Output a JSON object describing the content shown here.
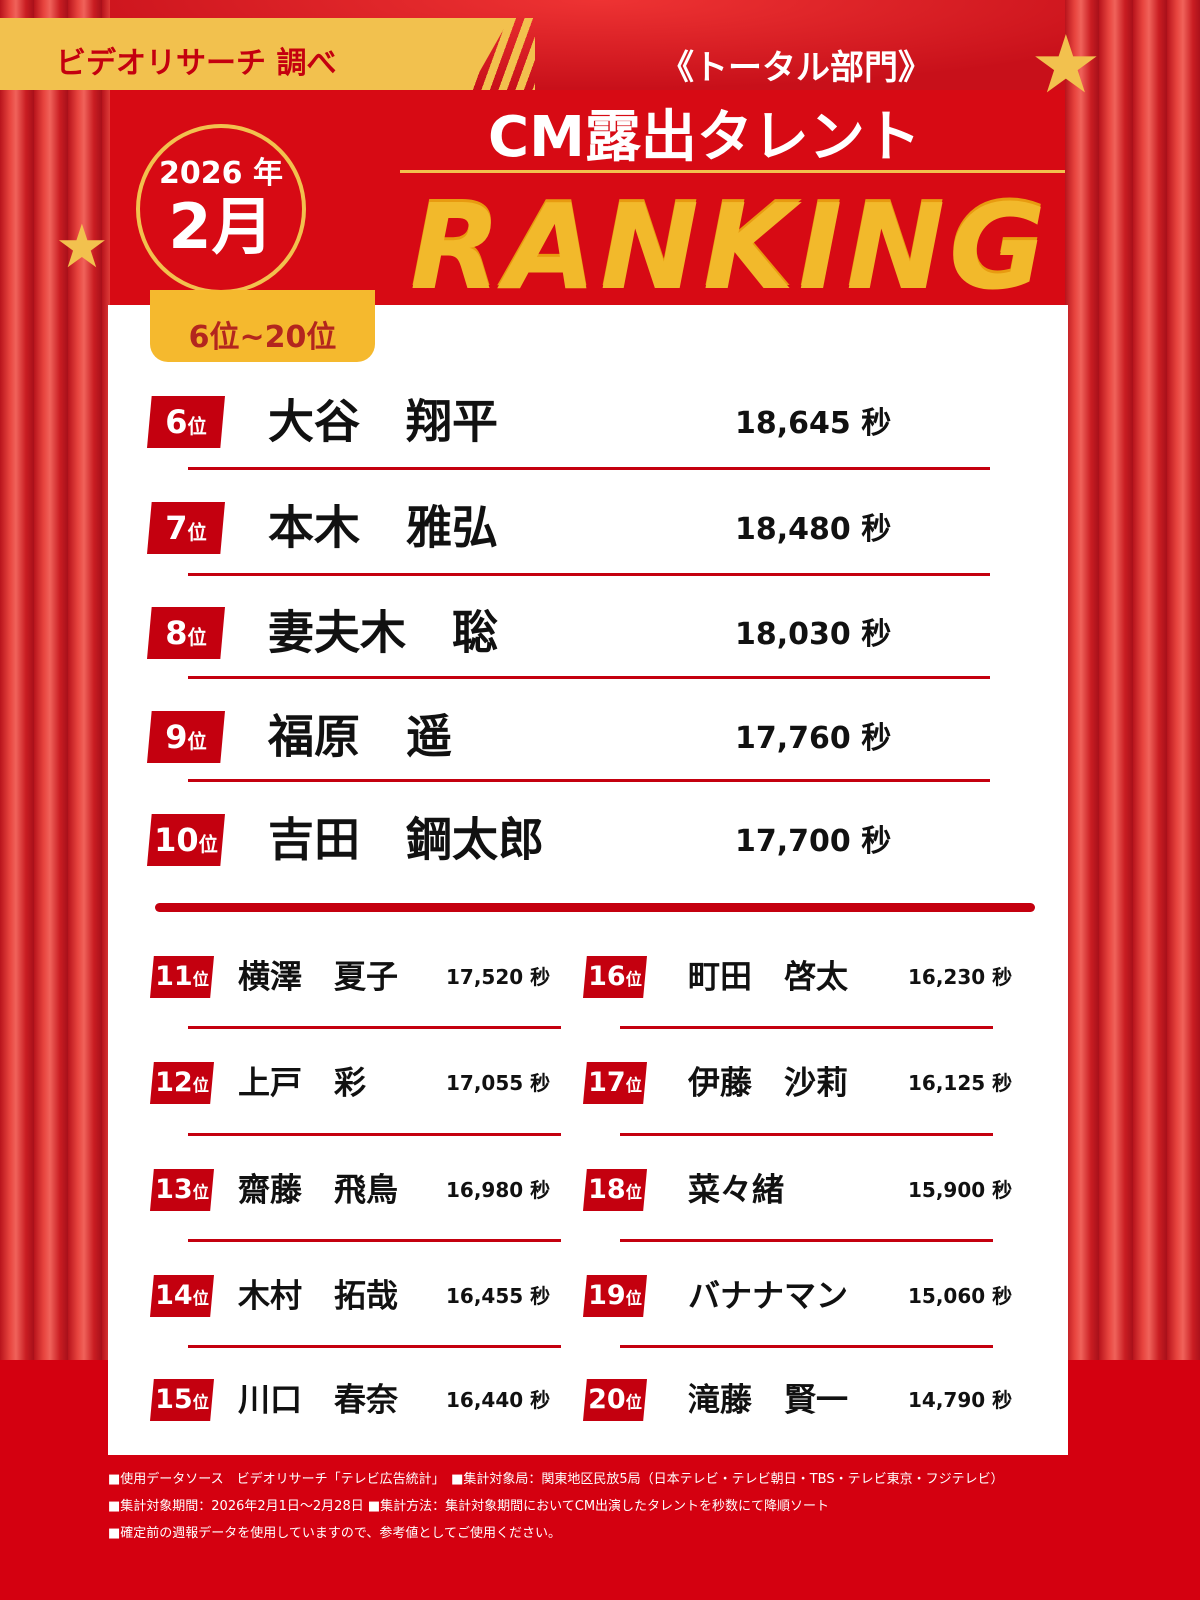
{
  "header": {
    "source_brand": "ビデオリサーチ 調べ",
    "category": "《トータル部門》",
    "title": "CM露出タレント",
    "ranking_word": "RANKING",
    "year": "2026 年",
    "month": "2月",
    "range_tab": "6位~20位"
  },
  "colors": {
    "red": "#c4000f",
    "gold": "#f2c14e"
  },
  "top_ranks": [
    {
      "rank": "6",
      "suffix": "位",
      "name": "大谷　翔平",
      "value": "18,645 秒"
    },
    {
      "rank": "7",
      "suffix": "位",
      "name": "本木　雅弘",
      "value": "18,480 秒"
    },
    {
      "rank": "8",
      "suffix": "位",
      "name": "妻夫木　聡",
      "value": "18,030 秒"
    },
    {
      "rank": "9",
      "suffix": "位",
      "name": "福原　遥",
      "value": "17,760 秒"
    },
    {
      "rank": "10",
      "suffix": "位",
      "name": "吉田　鋼太郎",
      "value": "17,700 秒"
    }
  ],
  "left_ranks": [
    {
      "rank": "11",
      "suffix": "位",
      "name": "横澤　夏子",
      "value": "17,520 秒"
    },
    {
      "rank": "12",
      "suffix": "位",
      "name": "上戸　彩",
      "value": "17,055 秒"
    },
    {
      "rank": "13",
      "suffix": "位",
      "name": "齋藤　飛鳥",
      "value": "16,980 秒"
    },
    {
      "rank": "14",
      "suffix": "位",
      "name": "木村　拓哉",
      "value": "16,455 秒"
    },
    {
      "rank": "15",
      "suffix": "位",
      "name": "川口　春奈",
      "value": "16,440 秒"
    }
  ],
  "right_ranks": [
    {
      "rank": "16",
      "suffix": "位",
      "name": "町田　啓太",
      "value": "16,230 秒"
    },
    {
      "rank": "17",
      "suffix": "位",
      "name": "伊藤　沙莉",
      "value": "16,125 秒"
    },
    {
      "rank": "18",
      "suffix": "位",
      "name": "菜々緒",
      "value": "15,900 秒"
    },
    {
      "rank": "19",
      "suffix": "位",
      "name": "バナナマン",
      "value": "15,060 秒"
    },
    {
      "rank": "20",
      "suffix": "位",
      "name": "滝藤　賢一",
      "value": "14,790 秒"
    }
  ],
  "footer": [
    "■使用データソース　ビデオリサーチ「テレビ広告統計」　■集計対象局：関東地区民放5局（日本テレビ・テレビ朝日・TBS・テレビ東京・フジテレビ）",
    "■集計対象期間：2026年2月1日～2月28日 ■集計方法：集計対象期間においてCM出演したタレントを秒数にて降順ソート",
    "■確定前の週報データを使用していますので、参考値としてご使用ください。"
  ]
}
